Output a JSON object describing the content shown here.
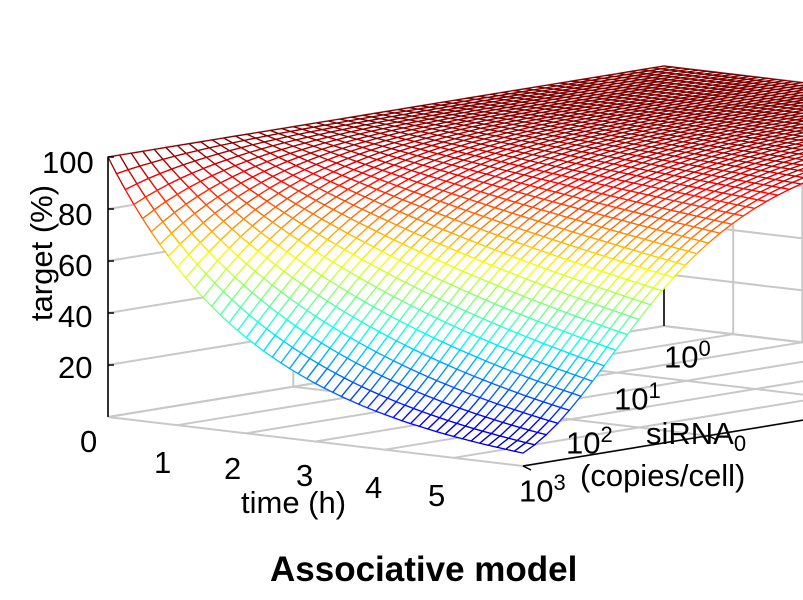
{
  "chart_data": {
    "type": "surface",
    "title": "Associative model",
    "xlabel": "time (h)",
    "ylabel": "siRNA0 (copies/cell)",
    "zlabel": "target (%)",
    "x_ticks": [
      "0",
      "1",
      "2",
      "3",
      "4",
      "5"
    ],
    "y_ticks": [
      {
        "base": "10",
        "exp": "0"
      },
      {
        "base": "10",
        "exp": "1"
      },
      {
        "base": "10",
        "exp": "2"
      },
      {
        "base": "10",
        "exp": "3"
      }
    ],
    "z_ticks": [
      "20",
      "40",
      "60",
      "80",
      "100"
    ],
    "xlim": [
      0,
      6
    ],
    "ylim_log10": [
      0,
      3
    ],
    "zlim": [
      0,
      100
    ],
    "colormap": "jet",
    "grid": true,
    "surface_points": [
      {
        "time_h": 0,
        "siRNA0": 1,
        "target_pct": 100
      },
      {
        "time_h": 6,
        "siRNA0": 1,
        "target_pct": 100
      },
      {
        "time_h": 0,
        "siRNA0": 1000,
        "target_pct": 100
      },
      {
        "time_h": 1,
        "siRNA0": 1000,
        "target_pct": 61
      },
      {
        "time_h": 2,
        "siRNA0": 1000,
        "target_pct": 37
      },
      {
        "time_h": 3,
        "siRNA0": 1000,
        "target_pct": 22
      },
      {
        "time_h": 4,
        "siRNA0": 1000,
        "target_pct": 14
      },
      {
        "time_h": 5,
        "siRNA0": 1000,
        "target_pct": 8
      },
      {
        "time_h": 6,
        "siRNA0": 1000,
        "target_pct": 5
      },
      {
        "time_h": 6,
        "siRNA0": 100,
        "target_pct": 38
      },
      {
        "time_h": 6,
        "siRNA0": 10,
        "target_pct": 88
      }
    ],
    "colors": {
      "grid": "#c8c8c8",
      "axis": "#000000",
      "mesh_low": "#00008f",
      "mesh_high": "#800000"
    }
  }
}
